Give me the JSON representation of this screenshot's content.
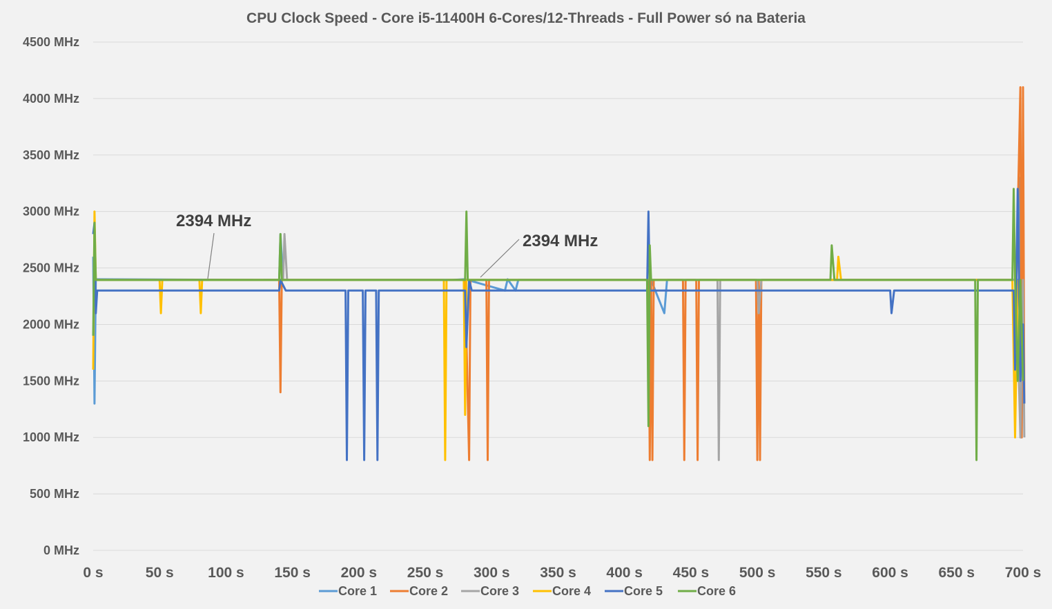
{
  "chart_data": {
    "type": "line",
    "title": "CPU Clock Speed - Core i5-11400H 6-Cores/12-Threads - Full Power só na Bateria",
    "xlabel": "",
    "ylabel": "",
    "xlim": [
      0,
      700
    ],
    "ylim": [
      0,
      4500
    ],
    "x_ticks": [
      "0 s",
      "50 s",
      "100 s",
      "150 s",
      "200 s",
      "250 s",
      "300 s",
      "350 s",
      "400 s",
      "450 s",
      "500 s",
      "550 s",
      "600 s",
      "650 s",
      "700 s"
    ],
    "y_ticks": [
      "0 MHz",
      "500 MHz",
      "1000 MHz",
      "1500 MHz",
      "2000 MHz",
      "2500 MHz",
      "3000 MHz",
      "3500 MHz",
      "4000 MHz",
      "4500 MHz"
    ],
    "grid": true,
    "legend_position": "bottom",
    "annotations": [
      {
        "text": "2394 MHz",
        "x": 85,
        "y": 2394
      },
      {
        "text": "2394 MHz",
        "x": 290,
        "y": 2394
      }
    ],
    "series": [
      {
        "name": "Core 1",
        "color": "#5b9bd5",
        "points": [
          [
            0,
            2600
          ],
          [
            1,
            1300
          ],
          [
            2,
            2400
          ],
          [
            140,
            2394
          ],
          [
            141,
            2800
          ],
          [
            143,
            2394
          ],
          [
            260,
            2394
          ],
          [
            270,
            2394
          ],
          [
            280,
            2400
          ],
          [
            310,
            2300
          ],
          [
            312,
            2400
          ],
          [
            318,
            2300
          ],
          [
            320,
            2394
          ],
          [
            420,
            2394
          ],
          [
            430,
            2100
          ],
          [
            432,
            2394
          ],
          [
            700,
            2394
          ],
          [
            697,
            3300
          ],
          [
            699,
            1000
          ],
          [
            700,
            2394
          ]
        ]
      },
      {
        "name": "Core 2",
        "color": "#ed7d31",
        "points": [
          [
            0,
            2394
          ],
          [
            140,
            2394
          ],
          [
            141,
            1400
          ],
          [
            142,
            2394
          ],
          [
            280,
            2394
          ],
          [
            283,
            800
          ],
          [
            284,
            2394
          ],
          [
            296,
            2394
          ],
          [
            297,
            800
          ],
          [
            298,
            2394
          ],
          [
            418,
            2394
          ],
          [
            419,
            800
          ],
          [
            420,
            2394
          ],
          [
            421,
            800
          ],
          [
            422,
            2394
          ],
          [
            444,
            2394
          ],
          [
            445,
            800
          ],
          [
            446,
            2394
          ],
          [
            454,
            2394
          ],
          [
            455,
            800
          ],
          [
            456,
            2394
          ],
          [
            499,
            2394
          ],
          [
            500,
            800
          ],
          [
            501,
            2394
          ],
          [
            502,
            800
          ],
          [
            503,
            2394
          ],
          [
            695,
            2394
          ],
          [
            698,
            4100
          ],
          [
            699,
            1000
          ],
          [
            700,
            4100
          ],
          [
            701,
            1300
          ]
        ]
      },
      {
        "name": "Core 3",
        "color": "#a5a5a5",
        "points": [
          [
            0,
            2394
          ],
          [
            143,
            2394
          ],
          [
            144,
            2800
          ],
          [
            146,
            2394
          ],
          [
            470,
            2394
          ],
          [
            471,
            800
          ],
          [
            472,
            2394
          ],
          [
            500,
            2394
          ],
          [
            501,
            2100
          ],
          [
            503,
            2394
          ],
          [
            695,
            2394
          ],
          [
            698,
            1000
          ],
          [
            700,
            2394
          ],
          [
            701,
            1000
          ]
        ]
      },
      {
        "name": "Core 4",
        "color": "#ffc000",
        "points": [
          [
            0,
            1600
          ],
          [
            1,
            3000
          ],
          [
            2,
            2394
          ],
          [
            50,
            2394
          ],
          [
            51,
            2100
          ],
          [
            52,
            2394
          ],
          [
            80,
            2394
          ],
          [
            81,
            2100
          ],
          [
            82,
            2394
          ],
          [
            264,
            2394
          ],
          [
            265,
            800
          ],
          [
            266,
            2394
          ],
          [
            279,
            2394
          ],
          [
            280,
            1200
          ],
          [
            281,
            2394
          ],
          [
            560,
            2394
          ],
          [
            561,
            2600
          ],
          [
            563,
            2394
          ],
          [
            692,
            2394
          ],
          [
            694,
            1000
          ],
          [
            696,
            2394
          ]
        ]
      },
      {
        "name": "Core 5",
        "color": "#4472c4",
        "points": [
          [
            0,
            2800
          ],
          [
            1,
            2900
          ],
          [
            2,
            2100
          ],
          [
            3,
            2300
          ],
          [
            140,
            2300
          ],
          [
            141,
            2394
          ],
          [
            145,
            2300
          ],
          [
            190,
            2300
          ],
          [
            191,
            800
          ],
          [
            192,
            2300
          ],
          [
            203,
            2300
          ],
          [
            204,
            800
          ],
          [
            205,
            2300
          ],
          [
            213,
            2300
          ],
          [
            214,
            800
          ],
          [
            215,
            2300
          ],
          [
            280,
            2300
          ],
          [
            281,
            1800
          ],
          [
            283,
            2394
          ],
          [
            285,
            2300
          ],
          [
            417,
            2300
          ],
          [
            418,
            3000
          ],
          [
            419,
            2300
          ],
          [
            600,
            2300
          ],
          [
            601,
            2100
          ],
          [
            603,
            2300
          ],
          [
            693,
            2300
          ],
          [
            694,
            1600
          ],
          [
            696,
            3200
          ],
          [
            698,
            1500
          ],
          [
            700,
            2000
          ],
          [
            701,
            1300
          ]
        ]
      },
      {
        "name": "Core 6",
        "color": "#70ad47",
        "points": [
          [
            0,
            1900
          ],
          [
            1,
            2900
          ],
          [
            2,
            2394
          ],
          [
            140,
            2394
          ],
          [
            141,
            2800
          ],
          [
            142,
            2394
          ],
          [
            280,
            2394
          ],
          [
            281,
            3000
          ],
          [
            282,
            2394
          ],
          [
            417,
            2394
          ],
          [
            418,
            1100
          ],
          [
            419,
            2700
          ],
          [
            420,
            2394
          ],
          [
            555,
            2394
          ],
          [
            556,
            2700
          ],
          [
            558,
            2394
          ],
          [
            664,
            2394
          ],
          [
            665,
            800
          ],
          [
            666,
            2394
          ],
          [
            692,
            2394
          ],
          [
            693,
            3200
          ],
          [
            694,
            2394
          ],
          [
            696,
            1500
          ],
          [
            698,
            2394
          ],
          [
            700,
            1500
          ]
        ]
      }
    ]
  }
}
